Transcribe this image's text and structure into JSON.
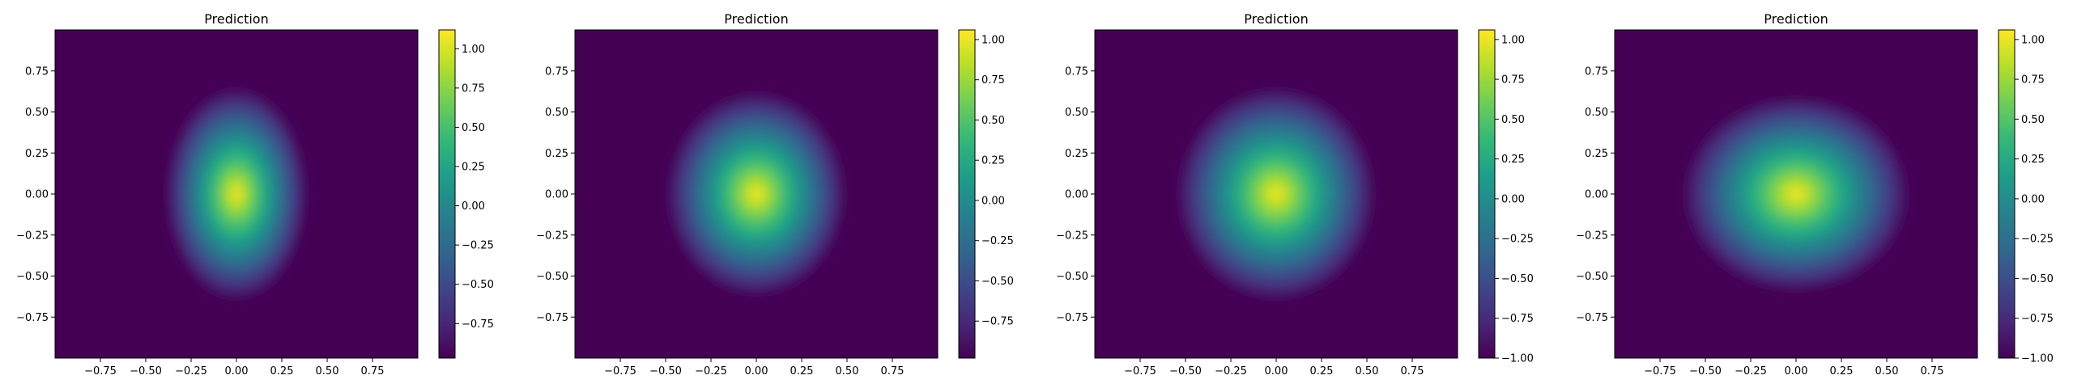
{
  "colormap": {
    "name": "viridis",
    "stops": [
      "#440154",
      "#482878",
      "#3e4989",
      "#31688e",
      "#26828e",
      "#1f9e89",
      "#35b779",
      "#6ece58",
      "#b5de2b",
      "#fde725"
    ]
  },
  "chart_data": [
    {
      "type": "heatmap",
      "title": "Prediction",
      "xlabel": "",
      "ylabel": "",
      "xlim": [
        -1,
        1
      ],
      "ylim": [
        -1,
        1
      ],
      "xticks": [
        "−0.75",
        "−0.50",
        "−0.25",
        "0.00",
        "0.25",
        "0.50",
        "0.75"
      ],
      "yticks": [
        "−0.75",
        "−0.50",
        "−0.25",
        "0.00",
        "0.25",
        "0.50",
        "0.75"
      ],
      "grid": false,
      "field": {
        "center": [
          0.0,
          0.0
        ],
        "sigma_x": 0.15,
        "sigma_y": 0.25,
        "peak": 1.1,
        "floor": -0.97
      },
      "colorbar": {
        "vmin": -0.97,
        "vmax": 1.12,
        "ticks": [
          "−0.75",
          "−0.50",
          "−0.25",
          "0.00",
          "0.25",
          "0.50",
          "0.75",
          "1.00"
        ]
      }
    },
    {
      "type": "heatmap",
      "title": "Prediction",
      "xlabel": "",
      "ylabel": "",
      "xlim": [
        -1,
        1
      ],
      "ylim": [
        -1,
        1
      ],
      "xticks": [
        "−0.75",
        "−0.50",
        "−0.25",
        "0.00",
        "0.25",
        "0.50",
        "0.75"
      ],
      "yticks": [
        "−0.75",
        "−0.50",
        "−0.25",
        "0.00",
        "0.25",
        "0.50",
        "0.75"
      ],
      "grid": false,
      "field": {
        "center": [
          0.0,
          0.0
        ],
        "sigma_x": 0.19,
        "sigma_y": 0.24,
        "peak": 1.06,
        "floor": -0.98
      },
      "colorbar": {
        "vmin": -0.98,
        "vmax": 1.06,
        "ticks": [
          "−0.75",
          "−0.50",
          "−0.25",
          "0.00",
          "0.25",
          "0.50",
          "0.75",
          "1.00"
        ]
      }
    },
    {
      "type": "heatmap",
      "title": "Prediction",
      "xlabel": "",
      "ylabel": "",
      "xlim": [
        -1,
        1
      ],
      "ylim": [
        -1,
        1
      ],
      "xticks": [
        "−0.75",
        "−0.50",
        "−0.25",
        "0.00",
        "0.25",
        "0.50",
        "0.75"
      ],
      "yticks": [
        "−0.75",
        "−0.50",
        "−0.25",
        "0.00",
        "0.25",
        "0.50",
        "0.75"
      ],
      "grid": false,
      "field": {
        "center": [
          0.0,
          0.0
        ],
        "sigma_x": 0.21,
        "sigma_y": 0.25,
        "peak": 1.05,
        "floor": -1.0
      },
      "colorbar": {
        "vmin": -1.0,
        "vmax": 1.06,
        "ticks": [
          "−1.00",
          "−0.75",
          "−0.50",
          "−0.25",
          "0.00",
          "0.25",
          "0.50",
          "0.75",
          "1.00"
        ]
      }
    },
    {
      "type": "heatmap",
      "title": "Prediction",
      "xlabel": "",
      "ylabel": "",
      "xlim": [
        -1,
        1
      ],
      "ylim": [
        -1,
        1
      ],
      "xticks": [
        "−0.75",
        "−0.50",
        "−0.25",
        "0.00",
        "0.25",
        "0.50",
        "0.75"
      ],
      "yticks": [
        "−0.75",
        "−0.50",
        "−0.25",
        "0.00",
        "0.25",
        "0.50",
        "0.75"
      ],
      "grid": false,
      "field": {
        "center": [
          0.0,
          0.0
        ],
        "sigma_x": 0.24,
        "sigma_y": 0.23,
        "peak": 1.05,
        "floor": -1.0
      },
      "colorbar": {
        "vmin": -1.0,
        "vmax": 1.06,
        "ticks": [
          "−1.00",
          "−0.75",
          "−0.50",
          "−0.25",
          "0.00",
          "0.25",
          "0.50",
          "0.75",
          "1.00"
        ]
      }
    }
  ]
}
